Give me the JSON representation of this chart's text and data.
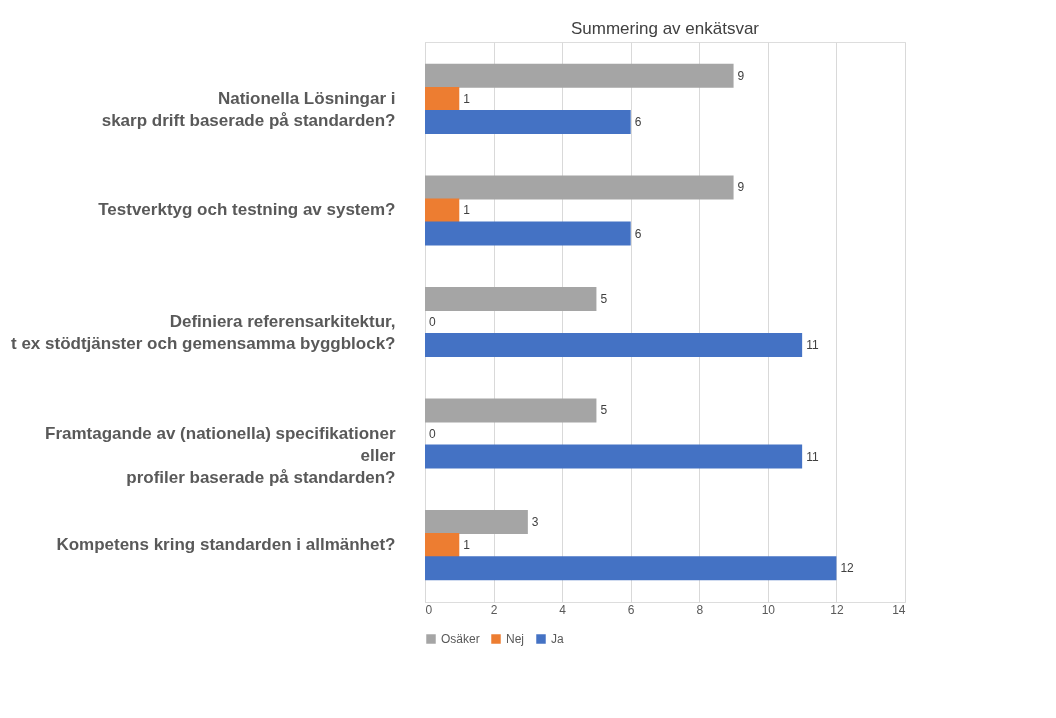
{
  "chart_data": {
    "type": "bar",
    "orientation": "horizontal",
    "title": "Summering av enkätsvar",
    "categories": [
      "Nationella Lösningar i\nskarp drift baserade på standarden?",
      "Testverktyg och testning av system?",
      "Definiera referensarkitektur,\nt ex stödtjänster och gemensamma byggblock?",
      "Framtagande av (nationella)  specifikationer\neller\nprofiler baserade på standarden?",
      "Kompetens kring standarden i allmänhet?"
    ],
    "series": [
      {
        "name": "Osäker",
        "color": "#a5a5a5",
        "values": [
          9,
          9,
          5,
          5,
          3
        ]
      },
      {
        "name": "Nej",
        "color": "#ed7d31",
        "values": [
          1,
          1,
          0,
          0,
          1
        ]
      },
      {
        "name": "Ja",
        "color": "#4472c4",
        "values": [
          6,
          6,
          11,
          11,
          12
        ]
      }
    ],
    "xlim": [
      0,
      14
    ],
    "xticks": [
      0,
      2,
      4,
      6,
      8,
      10,
      12,
      14
    ],
    "grid": "x",
    "legend": "bottom",
    "data_labels": true
  }
}
